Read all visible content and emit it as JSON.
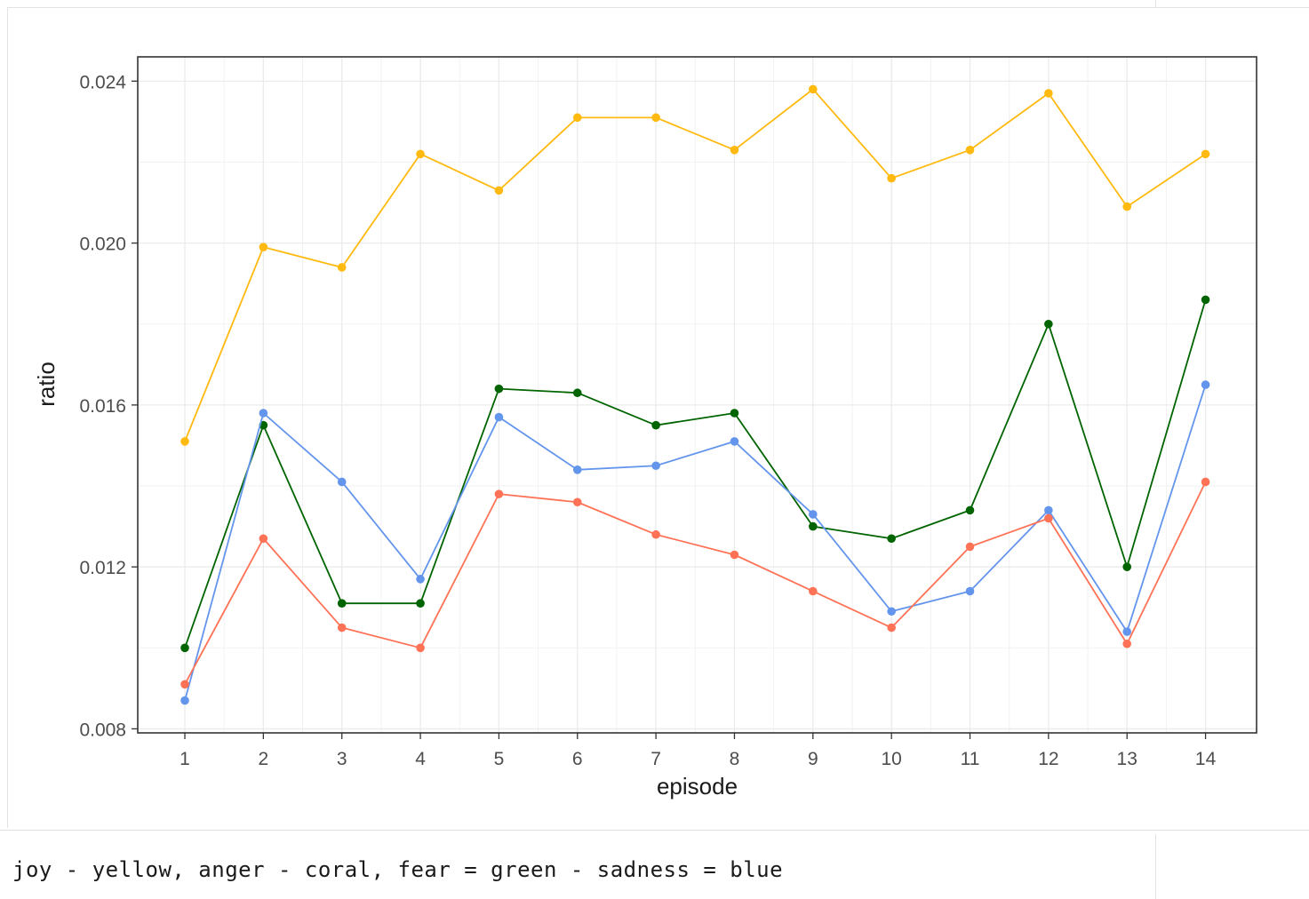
{
  "chart_data": {
    "type": "line",
    "title": "",
    "xlabel": "episode",
    "ylabel": "ratio",
    "x": [
      1,
      2,
      3,
      4,
      5,
      6,
      7,
      8,
      9,
      10,
      11,
      12,
      13,
      14
    ],
    "xlim": [
      0.4,
      14.65
    ],
    "ylim": [
      0.0079,
      0.0246
    ],
    "y_ticks": [
      0.008,
      0.012,
      0.016,
      0.02,
      0.024
    ],
    "y_tick_labels": [
      "0.008",
      "0.012",
      "0.016",
      "0.020",
      "0.024"
    ],
    "x_tick_labels": [
      "1",
      "2",
      "3",
      "4",
      "5",
      "6",
      "7",
      "8",
      "9",
      "10",
      "11",
      "12",
      "13",
      "14"
    ],
    "grid": true,
    "legend": "none",
    "series": [
      {
        "color": "#FFB90F",
        "values": [
          0.0151,
          0.0199,
          0.0194,
          0.0222,
          0.0213,
          0.0231,
          0.0231,
          0.0223,
          0.0238,
          0.0216,
          0.0223,
          0.0237,
          0.0209,
          0.0222
        ]
      },
      {
        "color": "#006400",
        "values": [
          0.01,
          0.0155,
          0.0111,
          0.0111,
          0.0164,
          0.0163,
          0.0155,
          0.0158,
          0.013,
          0.0127,
          0.0134,
          0.018,
          0.012,
          0.0186
        ]
      },
      {
        "color": "#6495ED",
        "values": [
          0.0087,
          0.0158,
          0.0141,
          0.0117,
          0.0157,
          0.0144,
          0.0145,
          0.0151,
          0.0133,
          0.0109,
          0.0114,
          0.0134,
          0.0104,
          0.0165
        ]
      },
      {
        "color": "#FF7256",
        "values": [
          0.0091,
          0.0127,
          0.0105,
          0.01,
          0.0138,
          0.0136,
          0.0128,
          0.0123,
          0.0114,
          0.0105,
          0.0125,
          0.0132,
          0.0101,
          0.0141
        ]
      }
    ]
  },
  "caption": {
    "text": "joy - yellow, anger - coral, fear = green - sadness = blue"
  }
}
